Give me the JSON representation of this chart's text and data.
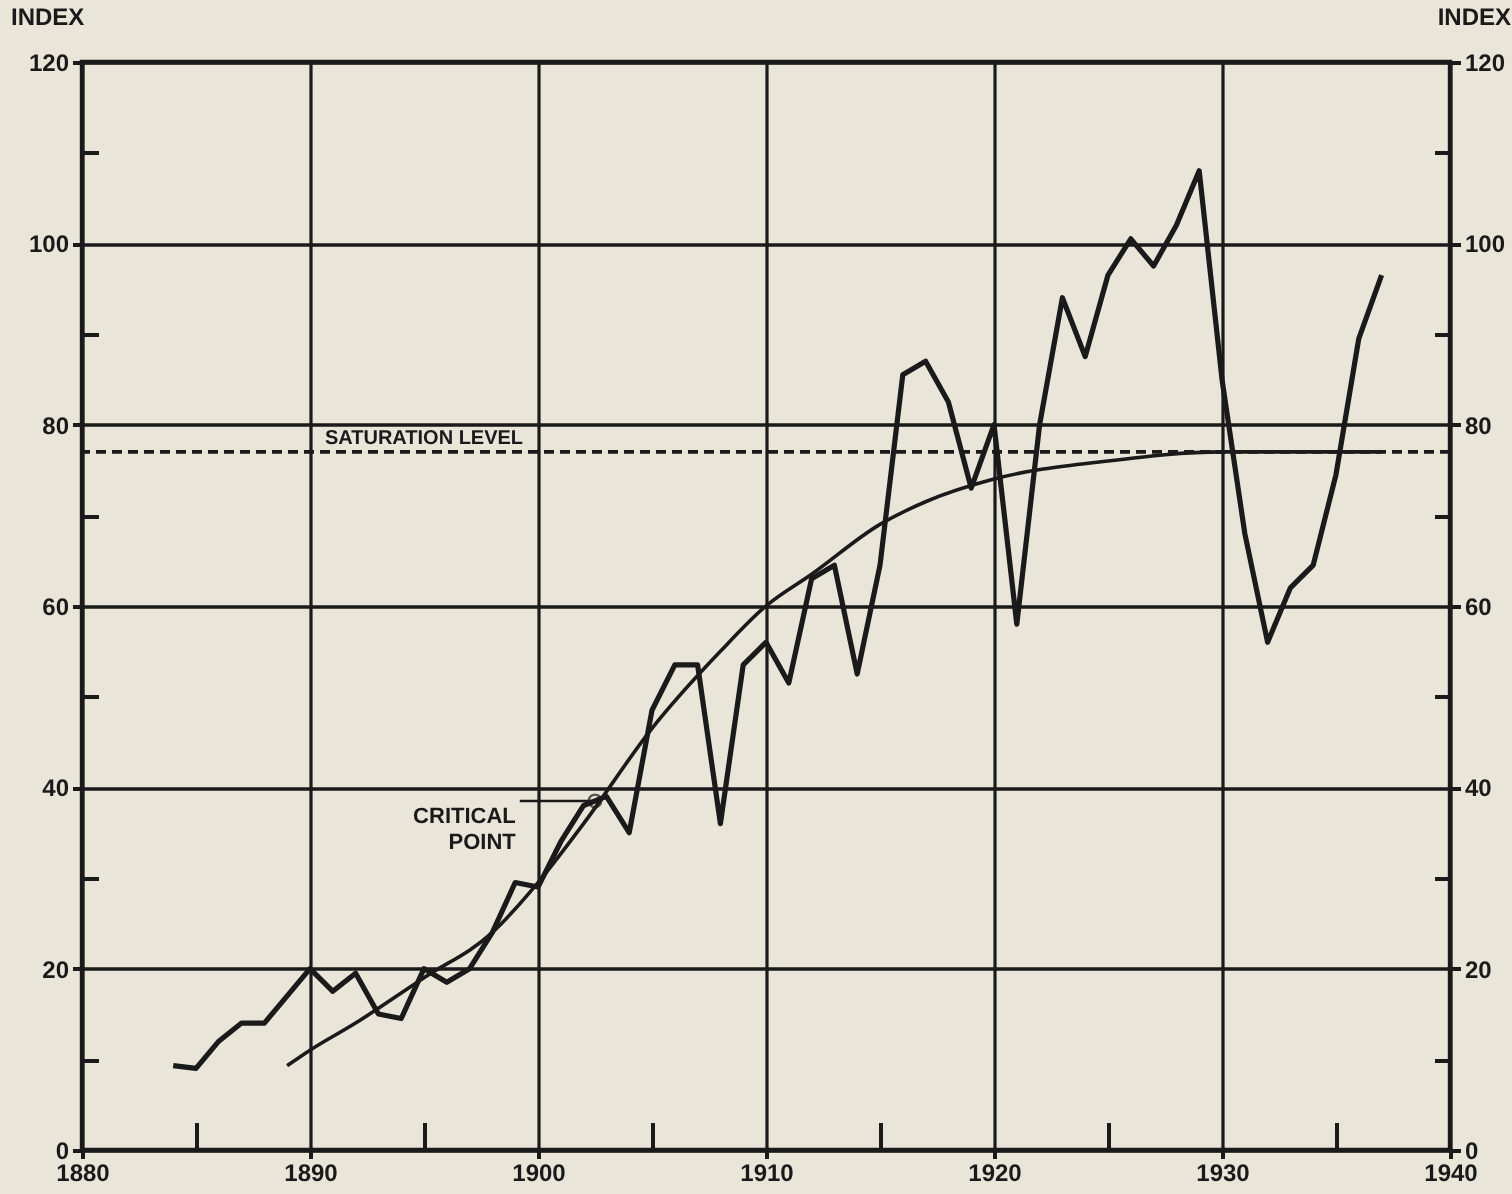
{
  "chart_data": {
    "type": "line",
    "ylabel": "INDEX",
    "y2label": "INDEX",
    "xlim": [
      1880,
      1940
    ],
    "xticks": [
      1880,
      {
        "value": 1885,
        "label": null
      },
      1890,
      {
        "value": 1895,
        "label": null
      },
      1900,
      {
        "value": 1905,
        "label": null
      },
      1910,
      {
        "value": 1915,
        "label": null
      },
      1920,
      {
        "value": 1925,
        "label": null
      },
      1930,
      {
        "value": 1935,
        "label": null
      },
      1940
    ],
    "ylim": [
      0,
      120
    ],
    "yticks": [
      0,
      {
        "value": 10,
        "label": null
      },
      20,
      {
        "value": 30,
        "label": null
      },
      40,
      {
        "value": 50,
        "label": null
      },
      60,
      {
        "value": 70,
        "label": null
      },
      80,
      {
        "value": 90,
        "label": null
      },
      100,
      {
        "value": 110,
        "label": null
      },
      120
    ],
    "y2lim": [
      0,
      120
    ],
    "y2ticks": [
      0,
      {
        "value": 10,
        "label": null
      },
      20,
      {
        "value": 30,
        "label": null
      },
      40,
      {
        "value": 50,
        "label": null
      },
      60,
      {
        "value": 70,
        "label": null
      },
      80,
      {
        "value": 90,
        "label": null
      },
      100,
      {
        "value": 110,
        "label": null
      },
      120
    ],
    "grid": true,
    "series": [
      {
        "color": "#1a1a1a",
        "x": [
          1884,
          1885,
          1886,
          1887,
          1888,
          1889,
          1890,
          1891,
          1892,
          1893,
          1894,
          1895,
          1896,
          1897,
          1898,
          1899,
          1900,
          1901,
          1902,
          1903,
          1904,
          1905,
          1906,
          1907,
          1908,
          1909,
          1910,
          1911,
          1912,
          1913,
          1914,
          1915,
          1916,
          1917,
          1918,
          1919,
          1920,
          1921,
          1922,
          1923,
          1924,
          1925,
          1926,
          1927,
          1928,
          1929,
          1930,
          1931,
          1932,
          1933,
          1934,
          1935,
          1936,
          1937
        ],
        "values": [
          9.3,
          9,
          12,
          14,
          14,
          17,
          20,
          17.5,
          19.5,
          15,
          14.5,
          20,
          18.5,
          20,
          24,
          29.5,
          29,
          34,
          38,
          39,
          35,
          48.5,
          53.5,
          53.5,
          36,
          53.5,
          56,
          51.5,
          63,
          64.5,
          52.5,
          64.5,
          85.5,
          87,
          82.5,
          73,
          80,
          58,
          80,
          94,
          87.5,
          96.5,
          100.5,
          97.5,
          102,
          108,
          85,
          68,
          56,
          62,
          64.5,
          74.5,
          89.5,
          96.5
        ]
      },
      {
        "type": "line",
        "color": "#1a1a1a",
        "x": [
          1889,
          1890,
          1892,
          1895,
          1898,
          1900,
          1902,
          1905,
          1908,
          1910,
          1912,
          1915,
          1917,
          1920,
          1925,
          1930,
          1937
        ],
        "values": [
          9.3,
          11,
          14,
          19,
          24,
          29.5,
          36,
          46.5,
          55,
          60,
          63.5,
          69,
          71.5,
          74,
          76,
          77,
          77
        ]
      }
    ],
    "ref_lines": [
      {
        "axis": "y",
        "value": 77,
        "label": "SATURATION LEVEL",
        "line_style": "dashed",
        "color": "#1a1a1a"
      }
    ],
    "annotations": [
      {
        "text": "CRITICAL POINT",
        "x": 1902.5,
        "y": 38.5
      }
    ]
  }
}
